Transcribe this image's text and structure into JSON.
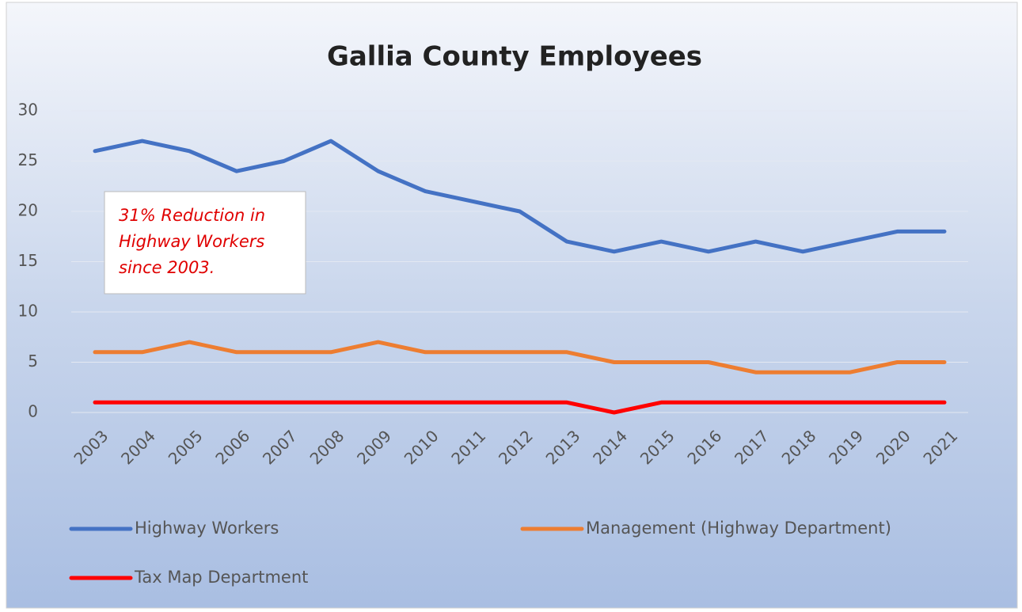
{
  "chart_data": {
    "type": "line",
    "title": "Gallia County Employees",
    "categories": [
      "2003",
      "2004",
      "2005",
      "2006",
      "2007",
      "2008",
      "2009",
      "2010",
      "2011",
      "2012",
      "2013",
      "2014",
      "2015",
      "2016",
      "2017",
      "2018",
      "2019",
      "2020",
      "2021"
    ],
    "series": [
      {
        "name": "Highway Workers",
        "color": "#4472c4",
        "values": [
          26,
          27,
          26,
          24,
          25,
          27,
          24,
          22,
          21,
          20,
          17,
          16,
          17,
          16,
          17,
          16,
          17,
          18,
          18
        ]
      },
      {
        "name": "Management (Highway Department)",
        "color": "#ed7d31",
        "values": [
          6,
          6,
          7,
          6,
          6,
          6,
          7,
          6,
          6,
          6,
          6,
          5,
          5,
          5,
          4,
          4,
          4,
          5,
          5
        ]
      },
      {
        "name": "Tax Map Department",
        "color": "#ff0000",
        "values": [
          1,
          1,
          1,
          1,
          1,
          1,
          1,
          1,
          1,
          1,
          1,
          0,
          1,
          1,
          1,
          1,
          1,
          1,
          1
        ]
      }
    ],
    "ylim": [
      0,
      30
    ],
    "yticks": [
      0,
      5,
      10,
      15,
      20,
      25,
      30
    ],
    "grid": true,
    "legend": "bottom",
    "annotation": [
      "31% Reduction in",
      "Highway Workers",
      "since 2003."
    ]
  }
}
